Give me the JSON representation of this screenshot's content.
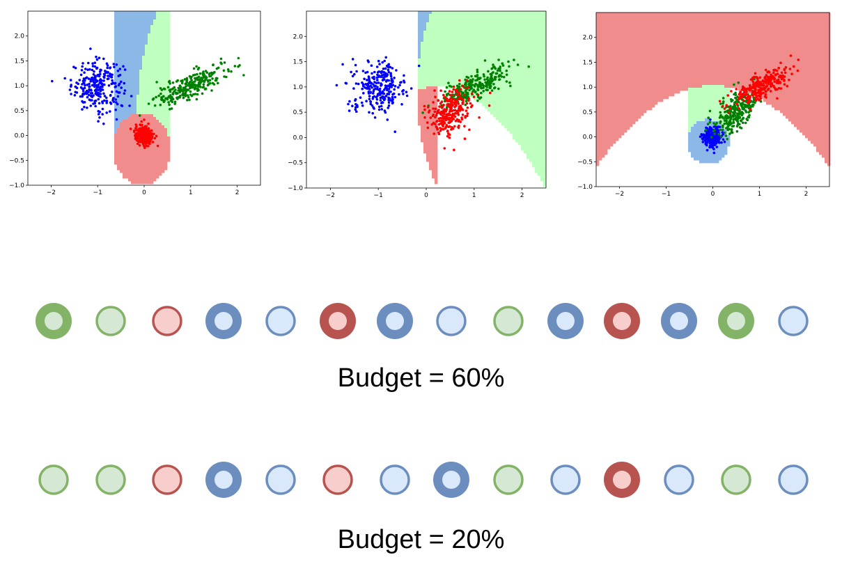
{
  "colors": {
    "region_blue": "#8cb8e8",
    "region_green": "#bfffbf",
    "region_red": "#f08c8c",
    "point_blue": "#0000ff",
    "point_green": "#008000",
    "point_red": "#ff0000",
    "green_outer": "#82b366",
    "green_inner": "#d5e8d4",
    "red_outer": "#b85450",
    "red_inner": "#f8cecc",
    "blue_outer": "#6c8ebf",
    "blue_inner": "#dae8fc"
  },
  "plots": [
    {
      "xlim": [
        -2.5,
        2.5
      ],
      "ylim": [
        -1.0,
        2.5
      ],
      "xticks": [
        "−2",
        "−1",
        "0",
        "1",
        "2"
      ],
      "yticks": [
        "−1.0",
        "−0.5",
        "0.0",
        "0.5",
        "1.0",
        "1.5",
        "2.0"
      ],
      "clusters": [
        {
          "color": "blue",
          "cx": -1.0,
          "cy": 1.0,
          "sx": 0.28,
          "sy": 0.25,
          "rho": 0.0,
          "n": 260
        },
        {
          "color": "green",
          "cx": 1.0,
          "cy": 1.0,
          "sx": 0.38,
          "sy": 0.2,
          "rho": 0.75,
          "n": 260
        },
        {
          "color": "red",
          "cx": 0.0,
          "cy": 0.0,
          "sx": 0.1,
          "sy": 0.1,
          "rho": 0.0,
          "n": 260
        }
      ]
    },
    {
      "xlim": [
        -2.5,
        2.5
      ],
      "ylim": [
        -1.0,
        2.5
      ],
      "xticks": [
        "−2",
        "−1",
        "0",
        "1",
        "2"
      ],
      "yticks": [
        "−1.0",
        "−0.5",
        "0.0",
        "0.5",
        "1.0",
        "1.5",
        "2.0"
      ],
      "clusters": [
        {
          "color": "blue",
          "cx": -1.0,
          "cy": 1.0,
          "sx": 0.28,
          "sy": 0.25,
          "rho": 0.0,
          "n": 260
        },
        {
          "color": "green",
          "cx": 1.0,
          "cy": 1.0,
          "sx": 0.38,
          "sy": 0.2,
          "rho": 0.75,
          "n": 260
        },
        {
          "color": "red",
          "cx": 0.5,
          "cy": 0.5,
          "sx": 0.22,
          "sy": 0.22,
          "rho": 0.3,
          "n": 260
        }
      ]
    },
    {
      "xlim": [
        -2.5,
        2.5
      ],
      "ylim": [
        -1.0,
        2.5
      ],
      "xticks": [
        "−2",
        "−1",
        "0",
        "1",
        "2"
      ],
      "yticks": [
        "−1.0",
        "−0.5",
        "0.0",
        "0.5",
        "1.0",
        "1.5",
        "2.0"
      ],
      "clusters": [
        {
          "color": "blue",
          "cx": 0.0,
          "cy": 0.0,
          "sx": 0.1,
          "sy": 0.1,
          "rho": 0.0,
          "n": 260
        },
        {
          "color": "green",
          "cx": 0.5,
          "cy": 0.5,
          "sx": 0.22,
          "sy": 0.22,
          "rho": 0.6,
          "n": 260
        },
        {
          "color": "red",
          "cx": 1.0,
          "cy": 1.0,
          "sx": 0.3,
          "sy": 0.18,
          "rho": 0.7,
          "n": 260
        }
      ]
    }
  ],
  "rows": [
    {
      "caption": "Budget = 60%",
      "nodes": [
        {
          "color": "green",
          "selected": true
        },
        {
          "color": "green",
          "selected": false
        },
        {
          "color": "red",
          "selected": false
        },
        {
          "color": "blue",
          "selected": true
        },
        {
          "color": "blue",
          "selected": false
        },
        {
          "color": "red",
          "selected": true
        },
        {
          "color": "blue",
          "selected": true
        },
        {
          "color": "blue",
          "selected": false
        },
        {
          "color": "green",
          "selected": false
        },
        {
          "color": "blue",
          "selected": true
        },
        {
          "color": "red",
          "selected": true
        },
        {
          "color": "blue",
          "selected": true
        },
        {
          "color": "green",
          "selected": true
        },
        {
          "color": "blue",
          "selected": false
        }
      ]
    },
    {
      "caption": "Budget = 20%",
      "nodes": [
        {
          "color": "green",
          "selected": false
        },
        {
          "color": "green",
          "selected": false
        },
        {
          "color": "red",
          "selected": false
        },
        {
          "color": "blue",
          "selected": true
        },
        {
          "color": "blue",
          "selected": false
        },
        {
          "color": "red",
          "selected": false
        },
        {
          "color": "blue",
          "selected": false
        },
        {
          "color": "blue",
          "selected": true
        },
        {
          "color": "green",
          "selected": false
        },
        {
          "color": "blue",
          "selected": false
        },
        {
          "color": "red",
          "selected": true
        },
        {
          "color": "blue",
          "selected": false
        },
        {
          "color": "green",
          "selected": false
        },
        {
          "color": "blue",
          "selected": false
        }
      ]
    }
  ]
}
